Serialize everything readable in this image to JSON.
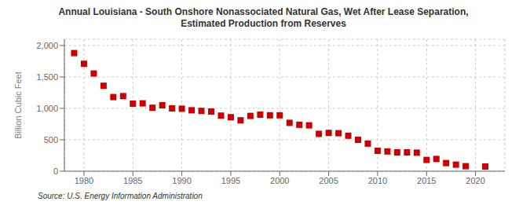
{
  "chart_data": {
    "type": "scatter",
    "title": "Annual Louisiana - South Onshore Nonassociated Natural Gas, Wet After Lease Separation,\nEstimated Production from Reserves",
    "y_label": "Billion Cubic Feet",
    "annotations": [
      "Source: U.S. Energy Information Administration"
    ],
    "color": "#cc0000",
    "marker": "square",
    "x": [
      1979,
      1980,
      1981,
      1982,
      1983,
      1984,
      1985,
      1986,
      1987,
      1988,
      1989,
      1990,
      1991,
      1992,
      1993,
      1994,
      1995,
      1996,
      1997,
      1998,
      1999,
      2000,
      2001,
      2002,
      2003,
      2004,
      2005,
      2006,
      2007,
      2008,
      2009,
      2010,
      2011,
      2012,
      2013,
      2014,
      2015,
      2016,
      2017,
      2018,
      2019,
      2021
    ],
    "values": [
      1880,
      1710,
      1555,
      1360,
      1180,
      1195,
      1075,
      1080,
      1010,
      1050,
      1000,
      995,
      970,
      960,
      950,
      885,
      860,
      810,
      880,
      900,
      890,
      890,
      770,
      740,
      730,
      595,
      610,
      605,
      565,
      500,
      440,
      325,
      315,
      300,
      300,
      295,
      180,
      195,
      130,
      105,
      80,
      75
    ],
    "xlim": [
      1978,
      2023
    ],
    "ylim": [
      0,
      2100
    ],
    "xticks": [
      1980,
      1985,
      1990,
      1995,
      2000,
      2005,
      2010,
      2015,
      2020
    ],
    "yticks": [
      0,
      500,
      {
        "value": 1000,
        "label": "1,000"
      },
      {
        "value": 1500,
        "label": "1,500"
      },
      {
        "value": 2000,
        "label": "2,000"
      }
    ],
    "grid": true
  }
}
